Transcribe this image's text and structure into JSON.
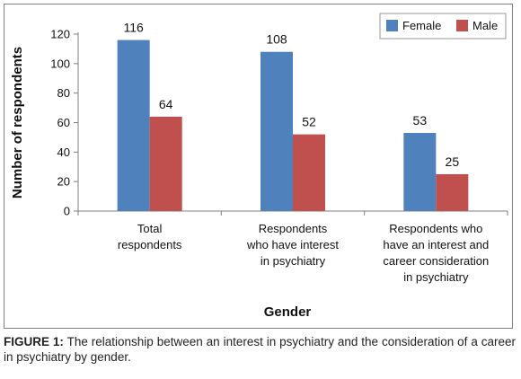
{
  "chart_data": {
    "type": "bar",
    "categories": [
      [
        "Total",
        "respondents"
      ],
      [
        "Respondents",
        "who have interest",
        "in psychiatry"
      ],
      [
        "Respondents who",
        "have an interest and",
        "career consideration",
        "in psychiatry"
      ]
    ],
    "series": [
      {
        "name": "Female",
        "values": [
          116,
          108,
          53
        ],
        "color": "#4f81bd"
      },
      {
        "name": "Male",
        "values": [
          64,
          52,
          25
        ],
        "color": "#c0504d"
      }
    ],
    "xlabel": "Gender",
    "ylabel": "Number of respondents",
    "ylim": [
      0,
      120
    ],
    "yticks": [
      0,
      20,
      40,
      60,
      80,
      100,
      120
    ],
    "grid": false,
    "legend_position": "top-right",
    "data_labels": true
  },
  "caption": {
    "label": "FIGURE 1:",
    "text": "The relationship between an interest in psychiatry and the consideration of a career in psychiatry by gender."
  }
}
